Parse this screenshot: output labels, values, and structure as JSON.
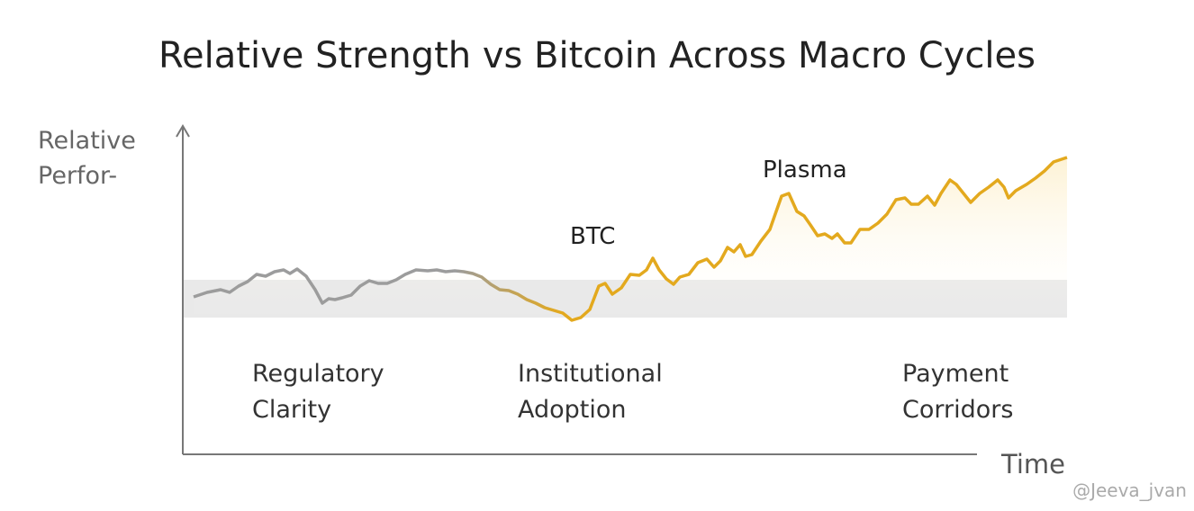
{
  "chart_data": {
    "type": "line",
    "title": "Relative Strength vs Bitcoin Across Macro Cycles",
    "ylabel_lines": [
      "Relative",
      "Perfor-"
    ],
    "xlabel": "Time",
    "annotations": [
      "BTC",
      "Plasma"
    ],
    "phases": [
      [
        "Regulatory",
        "Clarity"
      ],
      [
        "Institutional",
        "Adoption"
      ],
      [
        "Payment",
        "Corridors"
      ]
    ],
    "watermark": "@Jeeva_jvan",
    "xlim": [
      0,
      982
    ],
    "ylim": [
      0,
      365
    ],
    "series": [
      {
        "color": "#e3a91e",
        "start_color": "#9c9c9c",
        "x": [
          12,
          27,
          42,
          52,
          62,
          72,
          82,
          92,
          102,
          112,
          119,
          127,
          137,
          147,
          155,
          162,
          169,
          177,
          187,
          197,
          207,
          217,
          227,
          237,
          247,
          259,
          272,
          282,
          292,
          302,
          312,
          322,
          332,
          342,
          352,
          362,
          372,
          382,
          392,
          402,
          412,
          422,
          432,
          442,
          452,
          462,
          469,
          477,
          487,
          497,
          507,
          515,
          522,
          529,
          537,
          545,
          552,
          562,
          572,
          582,
          590,
          597,
          605,
          612,
          619,
          625,
          632,
          642,
          652,
          659,
          665,
          673,
          682,
          690,
          697,
          705,
          713,
          721,
          727,
          735,
          742,
          752,
          762,
          772,
          782,
          792,
          802,
          809,
          817,
          827,
          835,
          842,
          852,
          859,
          867,
          875,
          885,
          895,
          905,
          912,
          917,
          925,
          937,
          947,
          957,
          967,
          982
        ],
        "values": [
          175,
          180,
          183,
          180,
          187,
          192,
          200,
          198,
          203,
          205,
          201,
          206,
          198,
          183,
          168,
          173,
          172,
          174,
          177,
          187,
          193,
          190,
          190,
          194,
          200,
          205,
          204,
          205,
          203,
          204,
          203,
          201,
          197,
          189,
          183,
          182,
          178,
          172,
          168,
          163,
          160,
          157,
          149,
          152,
          161,
          187,
          190,
          178,
          185,
          200,
          199,
          205,
          218,
          205,
          195,
          189,
          197,
          200,
          213,
          217,
          208,
          215,
          230,
          225,
          233,
          220,
          222,
          237,
          250,
          270,
          287,
          290,
          270,
          265,
          255,
          243,
          245,
          240,
          245,
          235,
          235,
          250,
          250,
          257,
          267,
          283,
          285,
          278,
          278,
          287,
          277,
          290,
          305,
          300,
          290,
          280,
          290,
          297,
          305,
          297,
          285,
          293,
          300,
          307,
          315,
          325,
          330
        ]
      }
    ]
  }
}
